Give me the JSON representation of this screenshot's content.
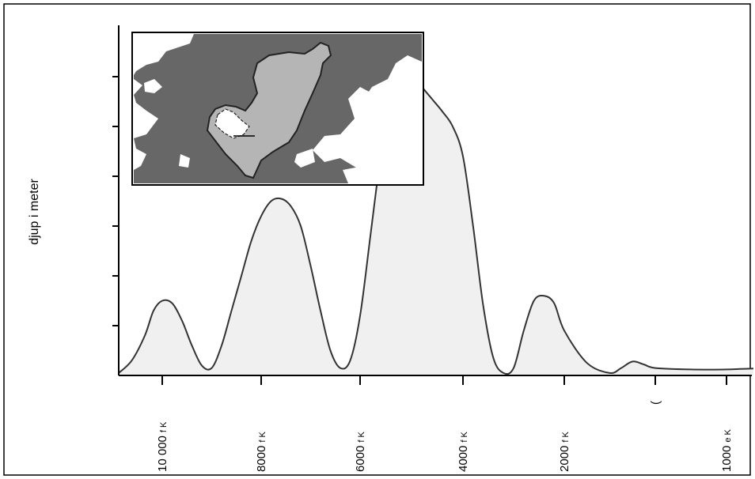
{
  "chart_data": {
    "type": "area",
    "title": "",
    "xlabel": "",
    "ylabel": "djup i meter",
    "x_direction": "descending",
    "xlim": [
      11000,
      800
    ],
    "ylim": [
      0,
      6
    ],
    "grid": false,
    "legend": "none",
    "fill_color": "#f0f0f0",
    "line_color": "#333333",
    "x_ticks": [
      {
        "value": 10000,
        "label": "10 000",
        "suffix": "f K"
      },
      {
        "value": 8000,
        "label": "8000",
        "suffix": "f K"
      },
      {
        "value": 6000,
        "label": "6000",
        "suffix": "f K"
      },
      {
        "value": 4000,
        "label": "4000",
        "suffix": "f K"
      },
      {
        "value": 2000,
        "label": "2000",
        "suffix": "f K"
      },
      {
        "value": 1200,
        "label": "(",
        "suffix": ""
      },
      {
        "value": 1000,
        "label": "1000",
        "suffix": "e K"
      }
    ],
    "y_ticks": [
      1,
      2,
      3,
      4,
      5,
      6
    ],
    "series": [
      {
        "x": [
          11000,
          10700,
          10400,
          10200,
          10000,
          9800,
          9600,
          9400,
          9200,
          9000,
          8800,
          8600,
          8400,
          8200,
          8000,
          7800,
          7600,
          7400,
          7200,
          7000,
          6800,
          6600,
          6400,
          6200,
          6000,
          5800,
          5600,
          5400,
          5200,
          5000,
          4800,
          4600,
          4400,
          4200,
          4000,
          3800,
          3600,
          3400,
          3200,
          3000,
          2800,
          2600,
          2400,
          2200,
          2000,
          1800,
          1600,
          1500,
          1400,
          1300,
          1200,
          1100,
          1000,
          900,
          800
        ],
        "y": [
          0.05,
          0.3,
          0.8,
          1.3,
          1.5,
          1.45,
          1.1,
          0.6,
          0.2,
          0.15,
          0.6,
          1.3,
          2.0,
          2.7,
          3.2,
          3.5,
          3.55,
          3.4,
          3.0,
          2.2,
          1.3,
          0.5,
          0.15,
          0.3,
          1.2,
          2.8,
          4.4,
          5.6,
          6.1,
          6.1,
          5.8,
          5.55,
          5.3,
          5.0,
          4.4,
          3.0,
          1.4,
          0.35,
          0.05,
          0.15,
          0.9,
          1.5,
          1.6,
          1.45,
          0.9,
          0.25,
          0.05,
          0.15,
          0.28,
          0.22,
          0.15,
          0.12,
          0.12,
          0.13,
          0.14
        ]
      }
    ]
  },
  "inset": {
    "description_icon": "lake-map-inset"
  }
}
